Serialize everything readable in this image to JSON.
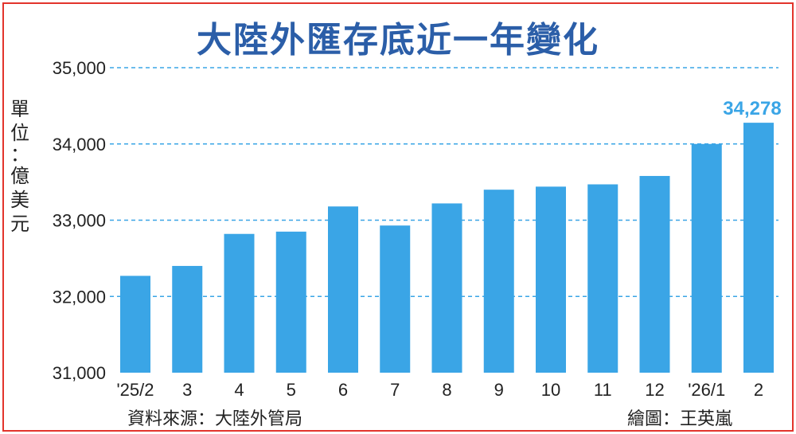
{
  "title": "大陸外匯存底近一年變化",
  "unit_label": "單位：億美元",
  "source": "資料來源：大陸外管局",
  "credit": "繪圖：王英嵐",
  "colors": {
    "bar": "#3aa5e6",
    "title": "#2b5ea8",
    "grid": "#3aa5e6",
    "border": "#e2342c",
    "highlight_label": "#3aa5e6"
  },
  "chart_data": {
    "type": "bar",
    "categories": [
      "'25/2",
      "3",
      "4",
      "5",
      "6",
      "7",
      "8",
      "9",
      "10",
      "11",
      "12",
      "'26/1",
      "2"
    ],
    "values": [
      32270,
      32400,
      32820,
      32850,
      33180,
      32930,
      33220,
      33400,
      33440,
      33470,
      33580,
      34000,
      34278
    ],
    "title": "大陸外匯存底近一年變化",
    "ylabel": "單位：億美元",
    "ylim": [
      31000,
      35000
    ],
    "yticks": [
      31000,
      32000,
      33000,
      34000,
      35000
    ],
    "ytick_labels": [
      "31,000",
      "32,000",
      "33,000",
      "34,000",
      "35,000"
    ],
    "grid": true,
    "data_labels": [
      {
        "index": 12,
        "text": "34,278"
      }
    ]
  }
}
